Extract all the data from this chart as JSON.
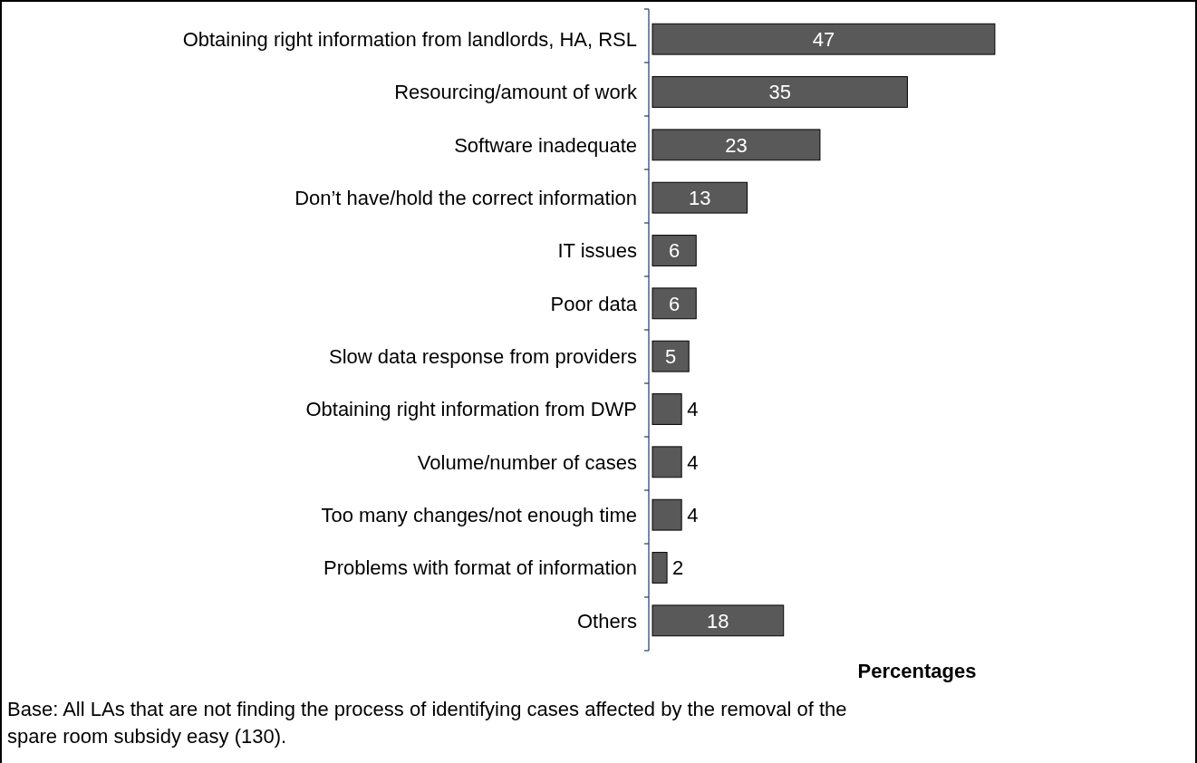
{
  "chart_data": {
    "type": "bar",
    "orientation": "horizontal",
    "categories": [
      "Obtaining right information from landlords, HA, RSL",
      "Resourcing/amount of work",
      "Software inadequate",
      "Don’t have/hold the correct information",
      "IT issues",
      "Poor data",
      "Slow data response from providers",
      "Obtaining right information from DWP",
      "Volume/number of cases",
      "Too many changes/not enough time",
      "Problems with format of information",
      "Others"
    ],
    "values": [
      47,
      35,
      23,
      13,
      6,
      6,
      5,
      4,
      4,
      4,
      2,
      18
    ],
    "color": "#595959",
    "data_labels": true,
    "xlabel": "Percentages",
    "annotations": [
      "Base: All LAs that are not finding the process of identifying cases affected by the removal of the spare room subsidy easy (130)."
    ]
  }
}
